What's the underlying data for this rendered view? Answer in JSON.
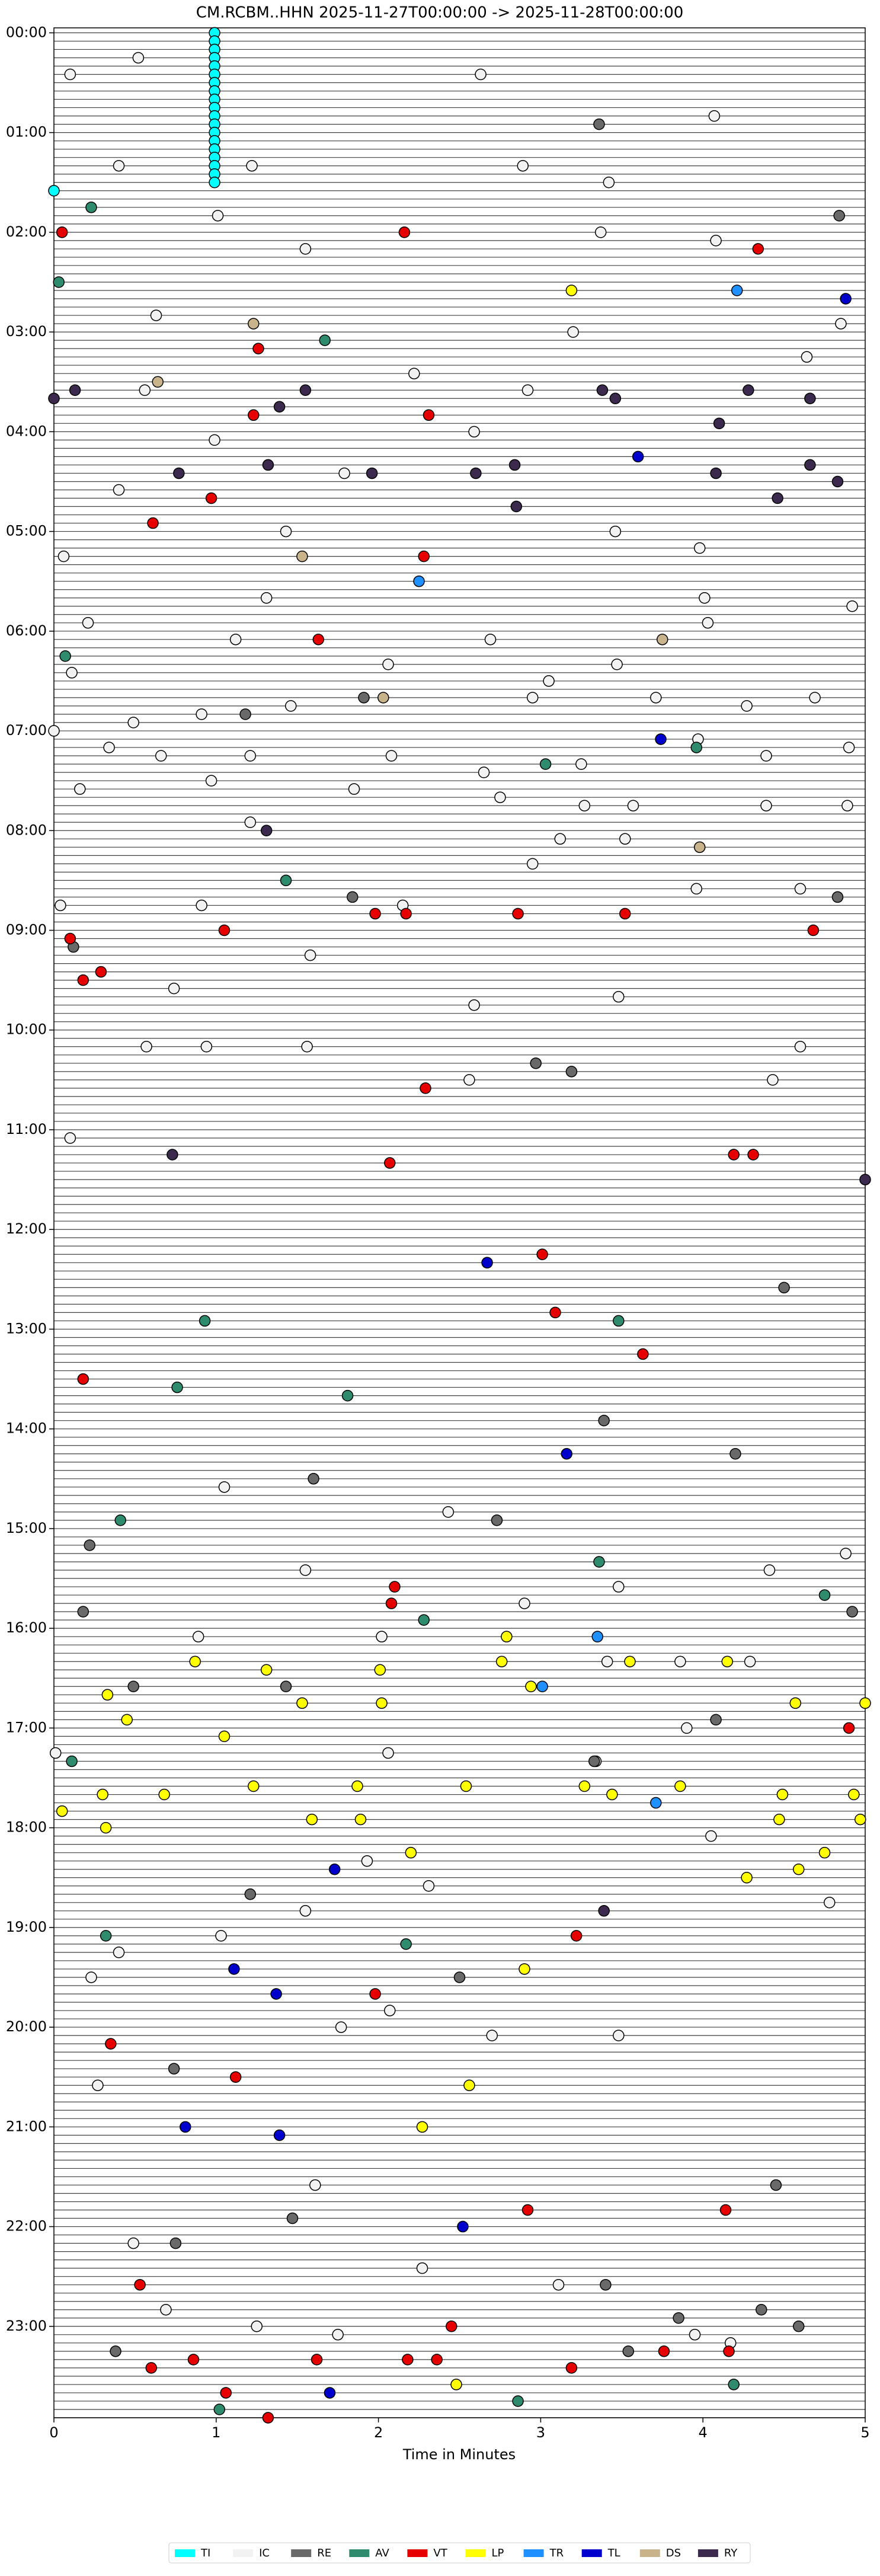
{
  "chart_data": {
    "type": "scatter",
    "title": "CM.RCBM..HHN  2025-11-27T00:00:00 -> 2025-11-28T00:00:00",
    "x_label": "Time in Minutes",
    "xlim": [
      0,
      5
    ],
    "xticks": [
      0,
      1,
      2,
      3,
      4,
      5
    ],
    "ylim": [
      -3,
      1435
    ],
    "y_inverted": true,
    "yticks": [
      {
        "value": 0,
        "label": "00:00"
      },
      {
        "value": 60,
        "label": "01:00"
      },
      {
        "value": 120,
        "label": "02:00"
      },
      {
        "value": 180,
        "label": "03:00"
      },
      {
        "value": 240,
        "label": "04:00"
      },
      {
        "value": 300,
        "label": "05:00"
      },
      {
        "value": 360,
        "label": "06:00"
      },
      {
        "value": 420,
        "label": "07:00"
      },
      {
        "value": 480,
        "label": "08:00"
      },
      {
        "value": 540,
        "label": "09:00"
      },
      {
        "value": 600,
        "label": "10:00"
      },
      {
        "value": 660,
        "label": "11:00"
      },
      {
        "value": 720,
        "label": "12:00"
      },
      {
        "value": 780,
        "label": "13:00"
      },
      {
        "value": 840,
        "label": "14:00"
      },
      {
        "value": 900,
        "label": "15:00"
      },
      {
        "value": 960,
        "label": "16:00"
      },
      {
        "value": 1020,
        "label": "17:00"
      },
      {
        "value": 1080,
        "label": "18:00"
      },
      {
        "value": 1140,
        "label": "19:00"
      },
      {
        "value": 1200,
        "label": "20:00"
      },
      {
        "value": 1260,
        "label": "21:00"
      },
      {
        "value": 1320,
        "label": "22:00"
      },
      {
        "value": 1380,
        "label": "23:00"
      }
    ],
    "legend": "bottom",
    "series": [
      {
        "name": "TI",
        "color": "#00ffff",
        "x": [
          0.99,
          0.99,
          0.99,
          0.99,
          0.99,
          0.99,
          0.99,
          0.99,
          0.99,
          0.99,
          0.99,
          0.99,
          0.99,
          0.99,
          0.99,
          0.99,
          0.99,
          0.99,
          0.99,
          0
        ],
        "y": [
          0,
          5,
          10,
          15,
          20,
          25,
          30,
          35,
          40,
          45,
          50,
          55,
          60,
          65,
          70,
          75,
          80,
          85,
          90,
          95
        ]
      },
      {
        "name": "IC",
        "color": "#f2f2f2",
        "x": [
          0.1,
          0.52,
          2.63,
          4.07,
          0.4,
          1.22,
          2.89,
          3.42,
          1.01,
          1.55,
          3.37,
          4.08,
          0.63,
          3.2,
          4.64,
          4.85,
          2.22,
          2.92,
          0.56,
          2.59,
          0.99,
          0.4,
          1.79,
          1.43,
          0.06,
          3.46,
          3.98,
          1.31,
          4.01,
          4.92,
          0.21,
          1.12,
          2.69,
          3.47,
          4.03,
          0.11,
          2.06,
          3.05,
          2.95,
          3.71,
          4.27,
          4.69,
          0.0,
          0.49,
          0.91,
          1.46,
          0.34,
          0.66,
          1.21,
          2.08,
          2.65,
          3.25,
          3.97,
          4.39,
          4.9,
          0.16,
          0.97,
          1.85,
          2.75,
          3.27,
          3.57,
          4.39,
          4.89,
          1.21,
          2.95,
          3.12,
          3.52,
          0.04,
          0.91,
          2.15,
          3.96,
          4.6,
          1.58,
          0.74,
          2.59,
          3.48,
          0.57,
          0.94,
          1.56,
          2.56,
          4.43,
          4.6,
          0.1,
          1.05,
          1.55,
          2.43,
          2.9,
          3.48,
          4.41,
          4.88,
          0.89,
          2.02,
          3.41,
          3.86,
          4.29,
          3.9,
          3.34,
          0.01,
          2.06,
          4.05,
          4.78,
          1.55,
          2.31,
          1.93,
          1.03,
          0.4,
          0.23,
          2.07,
          1.77,
          2.7,
          3.48,
          0.27,
          0.49,
          1.61,
          2.27,
          3.11,
          0.69,
          1.25,
          1.75,
          3.95,
          4.17
        ],
        "y": [
          25,
          15,
          25,
          50,
          80,
          80,
          80,
          90,
          110,
          130,
          120,
          125,
          170,
          180,
          195,
          175,
          205,
          215,
          215,
          240,
          245,
          275,
          265,
          300,
          315,
          300,
          310,
          340,
          340,
          345,
          355,
          365,
          365,
          380,
          355,
          385,
          380,
          390,
          400,
          400,
          405,
          400,
          420,
          415,
          410,
          405,
          430,
          435,
          435,
          435,
          445,
          440,
          425,
          435,
          430,
          455,
          450,
          455,
          460,
          465,
          465,
          465,
          465,
          475,
          500,
          485,
          485,
          525,
          525,
          525,
          515,
          515,
          555,
          575,
          585,
          580,
          610,
          610,
          610,
          630,
          630,
          610,
          665,
          875,
          925,
          890,
          945,
          935,
          925,
          915,
          965,
          965,
          980,
          980,
          980,
          1020,
          1040,
          1035,
          1035,
          1085,
          1125,
          1130,
          1115,
          1100,
          1145,
          1155,
          1170,
          1190,
          1200,
          1205,
          1205,
          1235,
          1330,
          1295,
          1345,
          1355,
          1370,
          1380,
          1385,
          1385,
          1390
        ]
      },
      {
        "name": "RE",
        "color": "#696969",
        "x": [
          3.36,
          4.84,
          1.18,
          1.91,
          0.12,
          1.84,
          2.97,
          3.19,
          4.83,
          1.6,
          2.73,
          0.22,
          0.18,
          4.92,
          0.49,
          1.43,
          3.33,
          4.08,
          4.5,
          1.21,
          2.5,
          0.74,
          1.47,
          0.75,
          4.45,
          3.4,
          4.36,
          3.85,
          4.59,
          0.38,
          3.54,
          3.39,
          4.2
        ],
        "y": [
          55,
          110,
          410,
          400,
          550,
          520,
          620,
          625,
          520,
          870,
          895,
          910,
          950,
          950,
          995,
          995,
          1040,
          1015,
          755,
          1120,
          1170,
          1225,
          1315,
          1330,
          1295,
          1355,
          1370,
          1375,
          1380,
          1395,
          1395,
          835,
          855
        ]
      },
      {
        "name": "AV",
        "color": "#2e8b6e",
        "x": [
          0.23,
          0.03,
          1.67,
          0.07,
          3.96,
          3.03,
          1.43,
          0.93,
          3.48,
          0.76,
          1.81,
          0.41,
          3.36,
          2.28,
          0.11,
          4.75,
          0.32,
          2.17,
          2.86,
          1.02,
          4.19
        ],
        "y": [
          105,
          150,
          185,
          375,
          430,
          440,
          510,
          775,
          775,
          815,
          820,
          895,
          920,
          955,
          1040,
          940,
          1145,
          1150,
          1425,
          1430,
          1415
        ]
      },
      {
        "name": "VT",
        "color": "#e60000",
        "x": [
          0.05,
          2.16,
          4.34,
          1.26,
          1.23,
          2.31,
          0.97,
          0.61,
          2.28,
          1.63,
          1.98,
          2.17,
          2.86,
          3.52,
          1.05,
          4.68,
          0.1,
          0.29,
          0.18,
          2.29,
          2.07,
          4.19,
          4.31,
          3.01,
          3.09,
          3.63,
          0.18,
          2.1,
          2.08,
          4.9,
          3.22,
          1.98,
          0.35,
          1.12,
          0.53,
          2.45,
          4.14,
          2.92,
          1.62,
          2.18,
          2.36,
          3.76,
          4.16,
          0.86,
          0.6,
          3.19,
          1.06,
          1.32
        ],
        "y": [
          120,
          120,
          130,
          190,
          230,
          230,
          280,
          295,
          315,
          365,
          530,
          530,
          530,
          530,
          540,
          540,
          545,
          565,
          570,
          635,
          680,
          675,
          675,
          735,
          770,
          795,
          810,
          935,
          945,
          1020,
          1145,
          1180,
          1210,
          1230,
          1355,
          1380,
          1310,
          1310,
          1400,
          1400,
          1400,
          1395,
          1395,
          1400,
          1405,
          1405,
          1420,
          1435
        ]
      },
      {
        "name": "LP",
        "color": "#ffff00",
        "x": [
          3.19,
          2.79,
          0.87,
          1.31,
          2.01,
          2.76,
          3.55,
          4.15,
          0.33,
          1.53,
          2.02,
          2.94,
          0.45,
          1.05,
          4.57,
          5.0,
          0.05,
          0.3,
          0.68,
          1.23,
          1.87,
          2.54,
          3.27,
          3.44,
          3.86,
          4.49,
          4.93,
          1.59,
          1.89,
          0.32,
          4.47,
          4.97,
          4.75,
          4.59,
          4.27,
          2.2,
          2.9,
          2.56,
          2.27,
          2.48
        ],
        "y": [
          155,
          965,
          980,
          985,
          985,
          980,
          980,
          980,
          1000,
          1005,
          1005,
          995,
          1015,
          1025,
          1005,
          1005,
          1070,
          1060,
          1060,
          1055,
          1055,
          1055,
          1055,
          1060,
          1055,
          1060,
          1060,
          1075,
          1075,
          1080,
          1075,
          1075,
          1095,
          1105,
          1110,
          1095,
          1165,
          1235,
          1260,
          1415
        ]
      },
      {
        "name": "TR",
        "color": "#1e90ff",
        "x": [
          2.25,
          4.21,
          3.35,
          3.01,
          3.71
        ],
        "y": [
          330,
          155,
          965,
          995,
          1065
        ]
      },
      {
        "name": "TL",
        "color": "#0000cd",
        "x": [
          4.88,
          3.6,
          3.74,
          2.67,
          3.16,
          1.73,
          1.11,
          1.37,
          0.81,
          1.39,
          2.52,
          1.7
        ],
        "y": [
          160,
          255,
          425,
          740,
          855,
          1105,
          1165,
          1180,
          1260,
          1265,
          1320,
          1420
        ]
      },
      {
        "name": "DS",
        "color": "#c8b38a",
        "x": [
          1.23,
          0.64,
          1.53,
          3.75,
          2.03,
          3.98
        ],
        "y": [
          175,
          210,
          315,
          365,
          400,
          490
        ]
      },
      {
        "name": "RY",
        "color": "#3b2a4d",
        "x": [
          0.0,
          0.13,
          1.55,
          3.38,
          4.28,
          4.66,
          1.39,
          3.46,
          4.1,
          1.32,
          0.77,
          1.96,
          2.6,
          2.84,
          4.08,
          4.66,
          4.83,
          4.46,
          2.85,
          1.31,
          0.73,
          5.0,
          3.39
        ],
        "y": [
          220,
          215,
          215,
          215,
          215,
          220,
          225,
          220,
          235,
          260,
          265,
          265,
          265,
          260,
          265,
          260,
          270,
          280,
          285,
          480,
          675,
          690,
          1130
        ]
      }
    ]
  }
}
